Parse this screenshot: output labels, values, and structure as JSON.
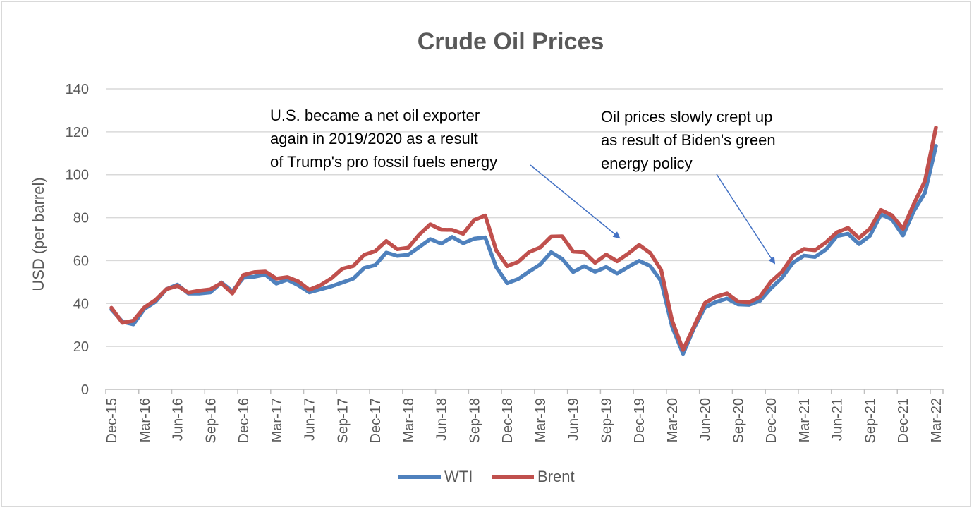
{
  "chart_data": {
    "type": "line",
    "title": "Crude Oil Prices",
    "ylabel": "USD (per barrel)",
    "xlabel": "",
    "ylim": [
      0,
      140
    ],
    "yticks": [
      0,
      20,
      40,
      60,
      80,
      100,
      120,
      140
    ],
    "grid": true,
    "legend_position": "bottom",
    "x": [
      "Dec-15",
      "Jan-16",
      "Feb-16",
      "Mar-16",
      "Apr-16",
      "May-16",
      "Jun-16",
      "Jul-16",
      "Aug-16",
      "Sep-16",
      "Oct-16",
      "Nov-16",
      "Dec-16",
      "Jan-17",
      "Feb-17",
      "Mar-17",
      "Apr-17",
      "May-17",
      "Jun-17",
      "Jul-17",
      "Aug-17",
      "Sep-17",
      "Oct-17",
      "Nov-17",
      "Dec-17",
      "Jan-18",
      "Feb-18",
      "Mar-18",
      "Apr-18",
      "May-18",
      "Jun-18",
      "Jul-18",
      "Aug-18",
      "Sep-18",
      "Oct-18",
      "Nov-18",
      "Dec-18",
      "Jan-19",
      "Feb-19",
      "Mar-19",
      "Apr-19",
      "May-19",
      "Jun-19",
      "Jul-19",
      "Aug-19",
      "Sep-19",
      "Oct-19",
      "Nov-19",
      "Dec-19",
      "Jan-20",
      "Feb-20",
      "Mar-20",
      "Apr-20",
      "May-20",
      "Jun-20",
      "Jul-20",
      "Aug-20",
      "Sep-20",
      "Oct-20",
      "Nov-20",
      "Dec-20",
      "Jan-21",
      "Feb-21",
      "Mar-21",
      "Apr-21",
      "May-21",
      "Jun-21",
      "Jul-21",
      "Aug-21",
      "Sep-21",
      "Oct-21",
      "Nov-21",
      "Dec-21",
      "Jan-22",
      "Feb-22",
      "Mar-22"
    ],
    "x_tick_labels": [
      "Dec-15",
      "Mar-16",
      "Jun-16",
      "Sep-16",
      "Dec-16",
      "Mar-17",
      "Jun-17",
      "Sep-17",
      "Dec-17",
      "Mar-18",
      "Jun-18",
      "Sep-18",
      "Dec-18",
      "Mar-19",
      "Jun-19",
      "Sep-19",
      "Dec-19",
      "Mar-20",
      "Jun-20",
      "Sep-20",
      "Dec-20",
      "Mar-21",
      "Jun-21",
      "Sep-21",
      "Dec-21",
      "Mar-22"
    ],
    "series": [
      {
        "name": "WTI",
        "color": "#4f81bd",
        "values": [
          37.2,
          31.5,
          30.3,
          37.5,
          40.8,
          46.7,
          48.8,
          44.7,
          44.7,
          45.2,
          49.8,
          45.7,
          52.0,
          52.5,
          53.5,
          49.3,
          51.1,
          48.5,
          45.2,
          46.6,
          48.0,
          49.8,
          51.6,
          56.6,
          57.9,
          63.7,
          62.2,
          62.7,
          66.3,
          70.0,
          67.9,
          71.0,
          68.1,
          70.2,
          70.8,
          57.0,
          49.5,
          51.4,
          54.9,
          58.2,
          63.9,
          60.8,
          54.7,
          57.4,
          54.8,
          57.0,
          54.0,
          57.0,
          59.9,
          57.5,
          50.5,
          29.2,
          16.6,
          28.6,
          38.3,
          40.7,
          42.3,
          39.6,
          39.4,
          41.3,
          47.1,
          52.0,
          59.0,
          62.3,
          61.7,
          65.2,
          71.4,
          72.5,
          67.7,
          71.6,
          81.5,
          79.2,
          71.7,
          83.2,
          91.6,
          113.4
        ]
      },
      {
        "name": "Brent",
        "color": "#c0504d",
        "values": [
          38.0,
          31.0,
          32.0,
          38.2,
          41.6,
          46.7,
          48.2,
          45.1,
          46.0,
          46.6,
          49.5,
          44.7,
          53.3,
          54.6,
          54.9,
          51.6,
          52.3,
          50.3,
          46.4,
          48.5,
          51.7,
          56.2,
          57.5,
          62.7,
          64.4,
          69.1,
          65.3,
          66.0,
          72.1,
          76.9,
          74.4,
          74.3,
          72.5,
          78.9,
          81.0,
          64.8,
          57.4,
          59.4,
          64.0,
          66.1,
          71.2,
          71.3,
          64.2,
          63.9,
          59.0,
          62.8,
          59.7,
          63.2,
          67.3,
          63.6,
          55.7,
          32.0,
          18.4,
          29.4,
          40.3,
          43.2,
          44.7,
          40.9,
          40.5,
          43.2,
          50.2,
          54.8,
          62.3,
          65.4,
          64.8,
          68.5,
          73.2,
          75.2,
          70.5,
          74.9,
          83.6,
          81.1,
          74.8,
          86.5,
          97.1,
          122.0
        ]
      }
    ],
    "annotations": [
      {
        "lines": [
          "U.S. became a net oil exporter",
          "again in 2019/2020 as a result",
          "of Trump's pro fossil fuels energy"
        ]
      },
      {
        "lines": [
          "Oil prices slowly crept up",
          "as result of Biden's green",
          "energy policy"
        ]
      }
    ]
  }
}
